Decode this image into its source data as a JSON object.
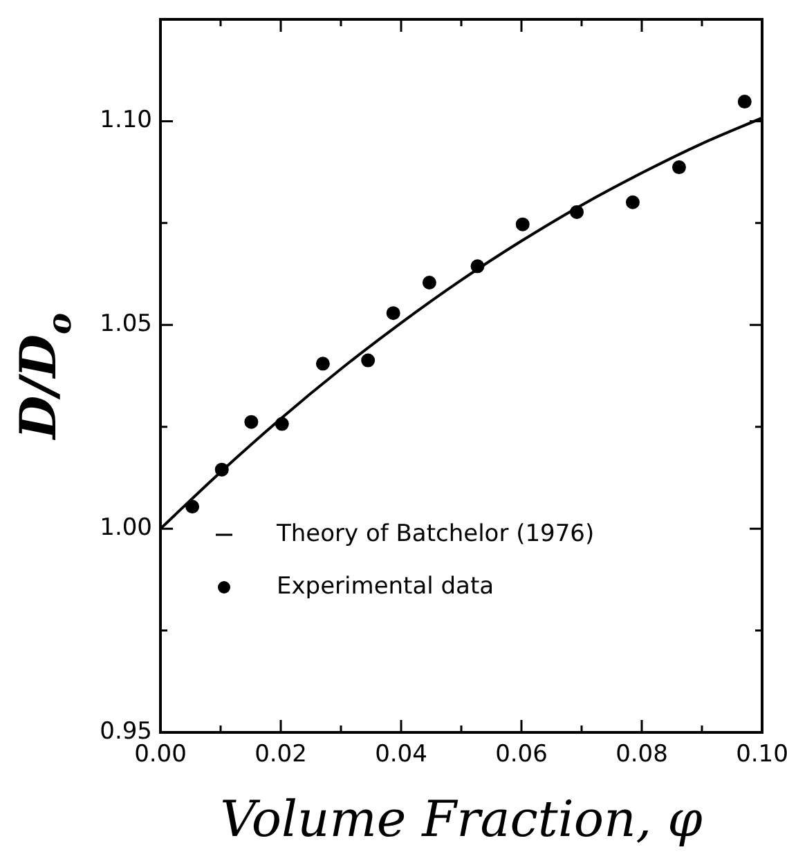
{
  "chart_data": {
    "type": "scatter",
    "xlabel": "Volume Fraction, φ",
    "ylabel": "D/D$_{o}$",
    "xlim": [
      0,
      0.1
    ],
    "ylim": [
      0.95,
      1.125
    ],
    "xticks": [
      {
        "value": 0,
        "label": "0.00"
      },
      {
        "value": 0.01,
        "label": null
      },
      {
        "value": 0.02,
        "label": "0.02"
      },
      {
        "value": 0.03,
        "label": null
      },
      {
        "value": 0.04,
        "label": "0.04"
      },
      {
        "value": 0.05,
        "label": null
      },
      {
        "value": 0.06,
        "label": "0.06"
      },
      {
        "value": 0.07,
        "label": null
      },
      {
        "value": 0.08,
        "label": "0.08"
      },
      {
        "value": 0.09,
        "label": null
      },
      {
        "value": 0.1,
        "label": "0.10"
      }
    ],
    "yticks": [
      {
        "value": 0.95,
        "label": "0.95"
      },
      {
        "value": 0.975,
        "label": null
      },
      {
        "value": 1,
        "label": "1.00"
      },
      {
        "value": 1.025,
        "label": null
      },
      {
        "value": 1.05,
        "label": "1.05"
      },
      {
        "value": 1.075,
        "label": null
      },
      {
        "value": 1.1,
        "label": "1.10"
      }
    ],
    "grid": false,
    "legend": "bottom left",
    "series": [
      {
        "name": "Theory of Batchelor (1976)",
        "type": "line",
        "color": "#000000",
        "marker": "none",
        "line_style": "solid",
        "x": [
          0,
          0.01,
          0.02,
          0.03,
          0.04,
          0.05,
          0.06,
          0.07,
          0.08,
          0.09,
          0.1
        ],
        "values": [
          1.0,
          1.0139,
          1.027,
          1.0392,
          1.0505,
          1.061,
          1.0706,
          1.0794,
          1.0873,
          1.0945,
          1.1008
        ]
      },
      {
        "name": "Experimental data",
        "type": "scatter",
        "color": "#000000",
        "marker": "circle",
        "x": [
          0.0053,
          0.0102,
          0.0151,
          0.0202,
          0.027,
          0.0345,
          0.0387,
          0.0447,
          0.0527,
          0.0602,
          0.0692,
          0.0785,
          0.0862,
          0.0971
        ],
        "values": [
          1.0054,
          1.0145,
          1.0262,
          1.0257,
          1.0405,
          1.0413,
          1.0529,
          1.0604,
          1.0644,
          1.0747,
          1.0777,
          1.0801,
          1.0887,
          1.1048
        ]
      }
    ]
  }
}
